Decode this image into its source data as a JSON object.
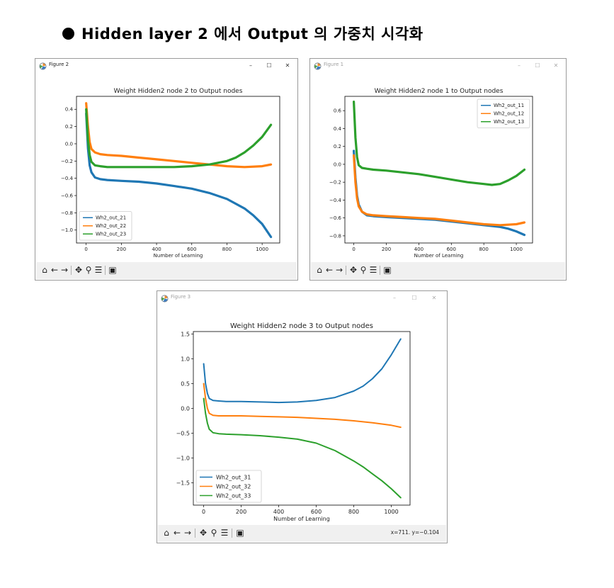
{
  "heading": {
    "text": "Hidden layer 2 에서 Output 의 가중치 시각화"
  },
  "windows": [
    {
      "title": "Figure 2",
      "active": true,
      "coords": "",
      "chart": {
        "type": "line",
        "title": "Weight Hidden2 node 2 to Output nodes",
        "xlabel": "Number of Learning",
        "ylabel": "",
        "xlim": [
          -55,
          1100
        ],
        "ylim": [
          -1.15,
          0.55
        ],
        "xticks": [
          0,
          200,
          400,
          600,
          800,
          1000
        ],
        "yticks": [
          0.4,
          0.2,
          0.0,
          -0.2,
          -0.4,
          -0.6,
          -0.8,
          -1.0
        ],
        "ytick_labels": [
          "0.4",
          "0.2",
          "0.0",
          "−0.2",
          "−0.4",
          "−0.6",
          "−0.8",
          "−1.0"
        ],
        "legend_loc": "lower-left",
        "series": [
          {
            "name": "Wh2_out_21",
            "color": "#1f77b4",
            "x": [
              0,
              10,
              20,
              30,
              50,
              80,
              120,
              200,
              300,
              400,
              500,
              600,
              700,
              800,
              900,
              950,
              1000,
              1050
            ],
            "y": [
              0.35,
              -0.05,
              -0.25,
              -0.33,
              -0.39,
              -0.41,
              -0.42,
              -0.43,
              -0.44,
              -0.46,
              -0.49,
              -0.52,
              -0.57,
              -0.64,
              -0.75,
              -0.83,
              -0.93,
              -1.08
            ]
          },
          {
            "name": "Wh2_out_22",
            "color": "#ff7f0e",
            "x": [
              0,
              10,
              20,
              30,
              50,
              80,
              120,
              200,
              300,
              400,
              500,
              600,
              700,
              800,
              900,
              1000,
              1050
            ],
            "y": [
              0.47,
              0.2,
              0.02,
              -0.06,
              -0.1,
              -0.12,
              -0.13,
              -0.14,
              -0.16,
              -0.18,
              -0.2,
              -0.22,
              -0.24,
              -0.26,
              -0.27,
              -0.26,
              -0.24
            ]
          },
          {
            "name": "Wh2_out_23",
            "color": "#2ca02c",
            "x": [
              0,
              10,
              20,
              30,
              50,
              80,
              120,
              200,
              300,
              400,
              500,
              600,
              700,
              800,
              850,
              900,
              950,
              1000,
              1050
            ],
            "y": [
              0.4,
              0.05,
              -0.13,
              -0.21,
              -0.25,
              -0.26,
              -0.27,
              -0.27,
              -0.27,
              -0.27,
              -0.27,
              -0.26,
              -0.24,
              -0.2,
              -0.16,
              -0.1,
              -0.02,
              0.08,
              0.22
            ]
          }
        ]
      }
    },
    {
      "title": "Figure 1",
      "active": false,
      "coords": "",
      "chart": {
        "type": "line",
        "title": "Weight Hidden2 node 1 to Output nodes",
        "xlabel": "Number of Learning",
        "ylabel": "",
        "xlim": [
          -55,
          1100
        ],
        "ylim": [
          -0.88,
          0.76
        ],
        "xticks": [
          0,
          200,
          400,
          600,
          800,
          1000
        ],
        "yticks": [
          0.6,
          0.4,
          0.2,
          0.0,
          -0.2,
          -0.4,
          -0.6,
          -0.8
        ],
        "ytick_labels": [
          "0.6",
          "0.4",
          "0.2",
          "0.0",
          "−0.2",
          "−0.4",
          "−0.6",
          "−0.8"
        ],
        "legend_loc": "top-right",
        "series": [
          {
            "name": "Wh2_out_11",
            "color": "#1f77b4",
            "x": [
              0,
              10,
              20,
              30,
              50,
              80,
              120,
              200,
              300,
              400,
              500,
              600,
              700,
              800,
              900,
              950,
              1000,
              1050
            ],
            "y": [
              0.15,
              -0.15,
              -0.35,
              -0.45,
              -0.53,
              -0.57,
              -0.58,
              -0.59,
              -0.6,
              -0.61,
              -0.62,
              -0.64,
              -0.66,
              -0.68,
              -0.7,
              -0.72,
              -0.75,
              -0.79
            ]
          },
          {
            "name": "Wh2_out_12",
            "color": "#ff7f0e",
            "x": [
              0,
              10,
              20,
              30,
              50,
              80,
              120,
              200,
              300,
              400,
              500,
              600,
              700,
              800,
              900,
              1000,
              1050
            ],
            "y": [
              0.1,
              -0.2,
              -0.38,
              -0.47,
              -0.53,
              -0.56,
              -0.57,
              -0.58,
              -0.59,
              -0.6,
              -0.61,
              -0.63,
              -0.65,
              -0.67,
              -0.68,
              -0.67,
              -0.65
            ]
          },
          {
            "name": "Wh2_out_13",
            "color": "#2ca02c",
            "x": [
              0,
              10,
              20,
              30,
              50,
              80,
              120,
              200,
              300,
              400,
              500,
              600,
              700,
              800,
              850,
              900,
              950,
              1000,
              1050
            ],
            "y": [
              0.7,
              0.3,
              0.08,
              -0.01,
              -0.04,
              -0.05,
              -0.06,
              -0.07,
              -0.09,
              -0.11,
              -0.14,
              -0.17,
              -0.2,
              -0.22,
              -0.23,
              -0.22,
              -0.18,
              -0.13,
              -0.06
            ]
          }
        ]
      }
    },
    {
      "title": "Figure 3",
      "active": false,
      "coords": "x=711.  y=−0.104",
      "chart": {
        "type": "line",
        "title": "Weight Hidden2 node 3 to Output nodes",
        "xlabel": "Number of Learning",
        "ylabel": "",
        "xlim": [
          -55,
          1100
        ],
        "ylim": [
          -1.95,
          1.55
        ],
        "xticks": [
          0,
          200,
          400,
          600,
          800,
          1000
        ],
        "yticks": [
          1.5,
          1.0,
          0.5,
          0.0,
          -0.5,
          -1.0,
          -1.5
        ],
        "ytick_labels": [
          "1.5",
          "1.0",
          "0.5",
          "0.0",
          "−0.5",
          "−1.0",
          "−1.5"
        ],
        "legend_loc": "lower-left",
        "series": [
          {
            "name": "Wh2_out_31",
            "color": "#1f77b4",
            "x": [
              0,
              10,
              20,
              30,
              50,
              80,
              120,
              200,
              300,
              400,
              500,
              600,
              700,
              800,
              850,
              900,
              950,
              1000,
              1050
            ],
            "y": [
              0.9,
              0.5,
              0.3,
              0.2,
              0.16,
              0.15,
              0.14,
              0.14,
              0.13,
              0.12,
              0.13,
              0.16,
              0.22,
              0.35,
              0.45,
              0.6,
              0.8,
              1.08,
              1.4
            ]
          },
          {
            "name": "Wh2_out_32",
            "color": "#ff7f0e",
            "x": [
              0,
              10,
              20,
              30,
              50,
              80,
              120,
              200,
              300,
              400,
              500,
              600,
              700,
              800,
              900,
              1000,
              1050
            ],
            "y": [
              0.5,
              0.2,
              0.0,
              -0.1,
              -0.14,
              -0.15,
              -0.15,
              -0.15,
              -0.16,
              -0.17,
              -0.18,
              -0.2,
              -0.22,
              -0.25,
              -0.29,
              -0.34,
              -0.38
            ]
          },
          {
            "name": "Wh2_out_33",
            "color": "#2ca02c",
            "x": [
              0,
              10,
              20,
              30,
              50,
              80,
              120,
              200,
              300,
              400,
              500,
              600,
              700,
              800,
              850,
              900,
              950,
              1000,
              1050
            ],
            "y": [
              0.2,
              -0.1,
              -0.3,
              -0.42,
              -0.49,
              -0.51,
              -0.52,
              -0.53,
              -0.55,
              -0.58,
              -0.62,
              -0.7,
              -0.85,
              -1.06,
              -1.18,
              -1.32,
              -1.46,
              -1.62,
              -1.8
            ]
          }
        ]
      }
    }
  ],
  "toolbar": {
    "home_icon": "home-icon",
    "back_icon": "back-arrow-icon",
    "forward_icon": "forward-arrow-icon",
    "pan_icon": "pan-icon",
    "zoom_icon": "zoom-icon",
    "configure_icon": "configure-subplots-icon",
    "save_icon": "save-icon"
  },
  "window_controls": {
    "minimize": "–",
    "maximize": "☐",
    "close": "✕"
  }
}
